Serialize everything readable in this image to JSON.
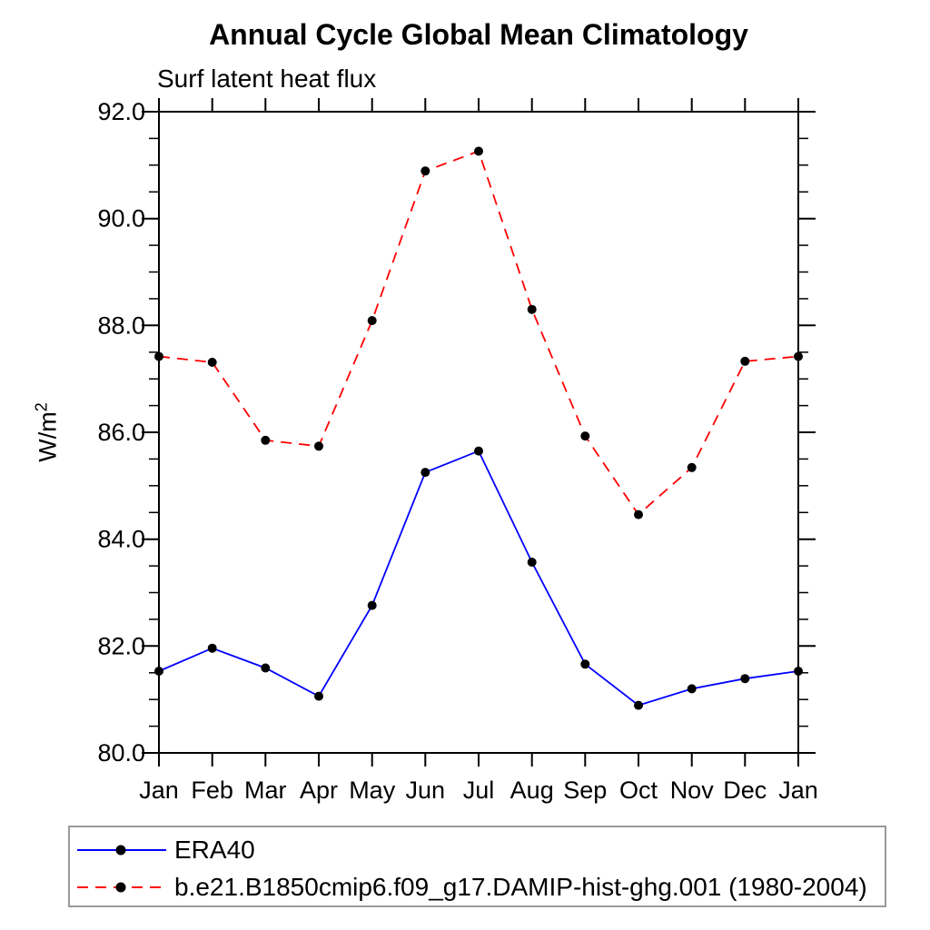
{
  "title": "Annual Cycle Global Mean Climatology",
  "subtitle": "Surf latent heat flux",
  "ylabel": {
    "base": "W/m",
    "exp": "2"
  },
  "chart_data": {
    "type": "line",
    "categories": [
      "Jan",
      "Feb",
      "Mar",
      "Apr",
      "May",
      "Jun",
      "Jul",
      "Aug",
      "Sep",
      "Oct",
      "Nov",
      "Dec",
      "Jan"
    ],
    "series": [
      {
        "name": "ERA40",
        "color": "#0000ff",
        "line_style": "solid",
        "marker": "filled-circle",
        "marker_color": "#000000",
        "values": [
          81.53,
          81.96,
          81.59,
          81.06,
          82.76,
          85.25,
          85.65,
          83.57,
          81.66,
          80.89,
          81.2,
          81.39,
          81.53
        ]
      },
      {
        "name": "b.e21.B1850cmip6.f09_g17.DAMIP-hist-ghg.001 (1980-2004)",
        "color": "#ff0000",
        "line_style": "dashed",
        "marker": "filled-circle",
        "marker_color": "#000000",
        "values": [
          87.42,
          87.31,
          85.85,
          85.74,
          88.09,
          90.89,
          91.26,
          88.3,
          85.93,
          84.46,
          85.34,
          87.33,
          87.42
        ]
      }
    ],
    "ylim": [
      80.0,
      92.0
    ],
    "ytick_interval_major": 2.0,
    "ytick_interval_minor": 0.5,
    "ytick_labels": [
      "80.0",
      "82.0",
      "84.0",
      "86.0",
      "88.0",
      "90.0",
      "92.0"
    ],
    "grid": false,
    "legend_position": "bottom-left-box",
    "axis_color": "#000000"
  }
}
